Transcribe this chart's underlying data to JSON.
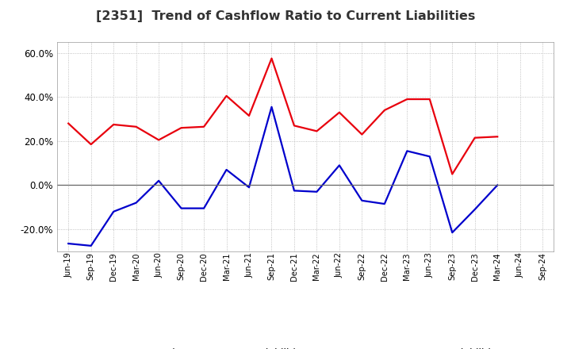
{
  "title": "[2351]  Trend of Cashflow Ratio to Current Liabilities",
  "x_labels": [
    "Jun-19",
    "Sep-19",
    "Dec-19",
    "Mar-20",
    "Jun-20",
    "Sep-20",
    "Dec-20",
    "Mar-21",
    "Jun-21",
    "Sep-21",
    "Dec-21",
    "Mar-22",
    "Jun-22",
    "Sep-22",
    "Dec-22",
    "Mar-23",
    "Jun-23",
    "Sep-23",
    "Dec-23",
    "Mar-24",
    "Jun-24",
    "Sep-24"
  ],
  "operating_cf": [
    0.28,
    0.185,
    0.275,
    0.265,
    0.205,
    0.26,
    0.265,
    0.405,
    0.315,
    0.575,
    0.27,
    0.245,
    0.33,
    0.23,
    0.34,
    0.39,
    0.39,
    0.05,
    0.215,
    0.22,
    null,
    null
  ],
  "free_cf": [
    -0.265,
    -0.275,
    -0.12,
    -0.08,
    0.02,
    -0.105,
    -0.105,
    0.07,
    -0.01,
    0.355,
    -0.025,
    -0.03,
    0.09,
    -0.07,
    -0.085,
    0.155,
    0.13,
    -0.215,
    -0.11,
    0.0,
    null,
    null
  ],
  "operating_color": "#e8000d",
  "free_color": "#0000cc",
  "ylim": [
    -0.3,
    0.65
  ],
  "yticks": [
    -0.2,
    0.0,
    0.2,
    0.4,
    0.6
  ],
  "background_color": "#ffffff",
  "grid_color": "#b0b0b0",
  "legend_op": "Operating CF to Current Liabilities",
  "legend_free": "Free CF to Current Liabilities"
}
